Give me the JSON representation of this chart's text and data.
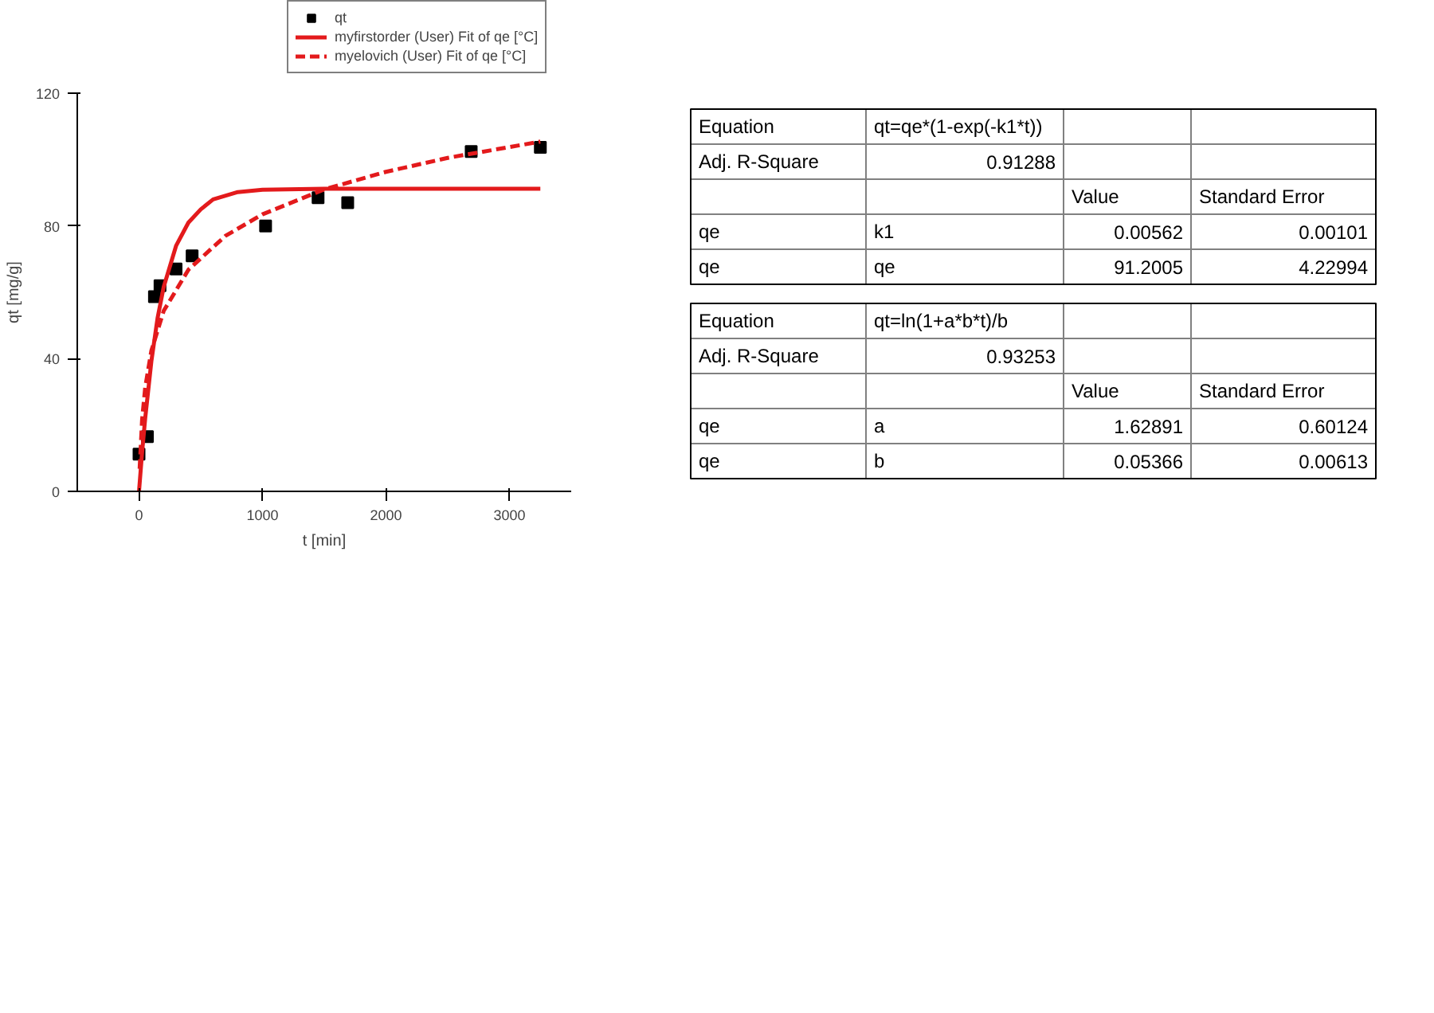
{
  "chart_data": [
    {
      "type": "scatter",
      "xlabel": "t [min]",
      "ylabel": "qt [mg/g]",
      "xlim": [
        -500,
        3500
      ],
      "ylim": [
        0,
        120
      ],
      "xticks": [
        0,
        1000,
        2000,
        3000
      ],
      "yticks": [
        0,
        40,
        80,
        120
      ],
      "grid": false,
      "legend": "top right",
      "series": [
        {
          "name": "qt",
          "color": "#000000",
          "marker": "square",
          "x": [
            0,
            68,
            125,
            170,
            300,
            430,
            1025,
            1450,
            1690,
            2690,
            3250
          ],
          "values": [
            11.2,
            16.5,
            58.7,
            62,
            67,
            71,
            80,
            88.5,
            87,
            102.4,
            103.7
          ]
        },
        {
          "name": "myfirstorder (User) Fit of qe [°C]",
          "type": "line",
          "color": "#e31a1c",
          "line_style": "solid",
          "x": [
            0,
            25,
            50,
            100,
            150,
            200,
            300,
            400,
            500,
            600,
            800,
            1000,
            1500,
            3250
          ],
          "values": [
            0,
            11.8,
            22,
            39.2,
            52.2,
            61.6,
            74,
            81,
            85,
            88,
            90.2,
            90.9,
            91.2,
            91.2
          ]
        },
        {
          "name": "myelovich (User) Fit of qe [°C]",
          "type": "line",
          "color": "#e31a1c",
          "line_style": "dashed",
          "x": [
            5,
            25,
            50,
            100,
            200,
            400,
            700,
            1000,
            1500,
            2000,
            2500,
            3250
          ],
          "values": [
            6.8,
            21.6,
            31.3,
            42.4,
            54.4,
            66.8,
            77,
            83.5,
            91,
            96.3,
            100.5,
            105.4
          ]
        }
      ]
    },
    {
      "type": "other",
      "cell_labels": [
        [
          "Equation",
          "qt=qe*(1-exp(-k1*t))",
          null,
          null
        ],
        [
          "Adj. R-Square",
          "0.91288",
          null,
          null
        ],
        [
          null,
          null,
          "Value",
          "Standard Error"
        ],
        [
          "qe",
          "k1",
          "0.00562",
          "0.00101"
        ],
        [
          "qe",
          "qe",
          "91.2005",
          "4.22994"
        ]
      ]
    },
    {
      "type": "other",
      "cell_labels": [
        [
          "Equation",
          "qt=ln(1+a*b*t)/b",
          null,
          null
        ],
        [
          "Adj. R-Square",
          "0.93253",
          null,
          null
        ],
        [
          null,
          null,
          "Value",
          "Standard Error"
        ],
        [
          "qe",
          "a",
          "1.62891",
          "0.60124"
        ],
        [
          "qe",
          "b",
          "0.05366",
          "0.00613"
        ]
      ]
    }
  ]
}
